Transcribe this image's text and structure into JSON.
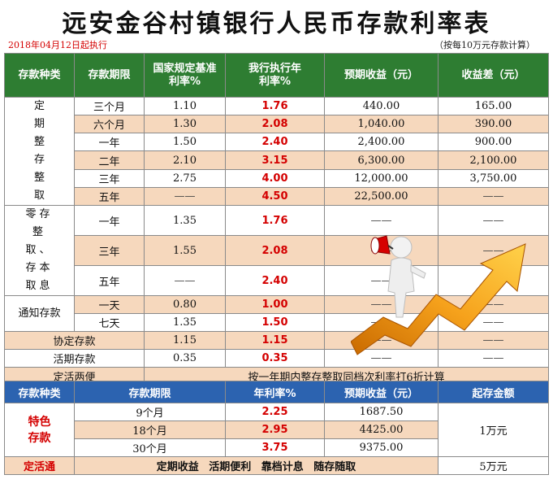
{
  "title": "远安金谷村镇银行人民币存款利率表",
  "effective_note": "2018年04月12日起执行",
  "basis_note": "（按每10万元存款计算）",
  "table1": {
    "headers": {
      "type": "存款种类",
      "term": "存款期限",
      "base_rate": "国家规定基准利率%",
      "bank_rate": "我行执行年利率%",
      "expected": "预期收益（元）",
      "diff": "收益差（元）"
    },
    "fixed_group": "定期整存整取",
    "fixed": [
      {
        "term": "三个月",
        "base": "1.10",
        "rate": "1.76",
        "expected": "440.00",
        "diff": "165.00"
      },
      {
        "term": "六个月",
        "base": "1.30",
        "rate": "2.08",
        "expected": "1,040.00",
        "diff": "390.00"
      },
      {
        "term": "一年",
        "base": "1.50",
        "rate": "2.40",
        "expected": "2,400.00",
        "diff": "900.00"
      },
      {
        "term": "二年",
        "base": "2.10",
        "rate": "3.15",
        "expected": "6,300.00",
        "diff": "2,100.00"
      },
      {
        "term": "三年",
        "base": "2.75",
        "rate": "4.00",
        "expected": "12,000.00",
        "diff": "3,750.00"
      },
      {
        "term": "五年",
        "base": "——",
        "rate": "4.50",
        "expected": "22,500.00",
        "diff": "——"
      }
    ],
    "lump_group": "零存整取、存本取息",
    "lump": [
      {
        "term": "一年",
        "base": "1.35",
        "rate": "1.76",
        "expected": "——",
        "diff": "——"
      },
      {
        "term": "三年",
        "base": "1.55",
        "rate": "2.08",
        "expected": "——",
        "diff": "——"
      },
      {
        "term": "五年",
        "base": "——",
        "rate": "2.40",
        "expected": "——",
        "diff": "——"
      }
    ],
    "notice_group": "通知存款",
    "notice": [
      {
        "term": "一天",
        "base": "0.80",
        "rate": "1.00",
        "expected": "——",
        "diff": "——"
      },
      {
        "term": "七天",
        "base": "1.35",
        "rate": "1.50",
        "expected": "——",
        "diff": "——"
      }
    ],
    "agreement": {
      "label": "协定存款",
      "base": "1.15",
      "rate": "1.15",
      "expected": "——",
      "diff": "——"
    },
    "demand": {
      "label": "活期存款",
      "base": "0.35",
      "rate": "0.35",
      "expected": "——",
      "diff": "——"
    },
    "flex": {
      "label": "定活两便",
      "desc": "按一年期内整存整取同档次利率打6折计算"
    }
  },
  "table2": {
    "headers": {
      "type": "存款种类",
      "term": "存款期限",
      "rate": "年利率%",
      "expected": "预期收益（元）",
      "min": "起存金额"
    },
    "special_group": "特色存款",
    "special": [
      {
        "term": "9个月",
        "rate": "2.25",
        "expected": "1687.50"
      },
      {
        "term": "18个月",
        "rate": "2.95",
        "expected": "4425.00"
      },
      {
        "term": "30个月",
        "rate": "3.75",
        "expected": "9375.00"
      }
    ],
    "special_min": "1万元",
    "dhtong": {
      "label": "定活通",
      "desc": "定期收益 活期便利 靠档计息 随存随取",
      "min": "5万元"
    }
  },
  "colors": {
    "green_header": "#2e7d32",
    "blue_header": "#2c63b0",
    "peach_row": "#f6d8bd",
    "rate_red": "#d40000"
  }
}
